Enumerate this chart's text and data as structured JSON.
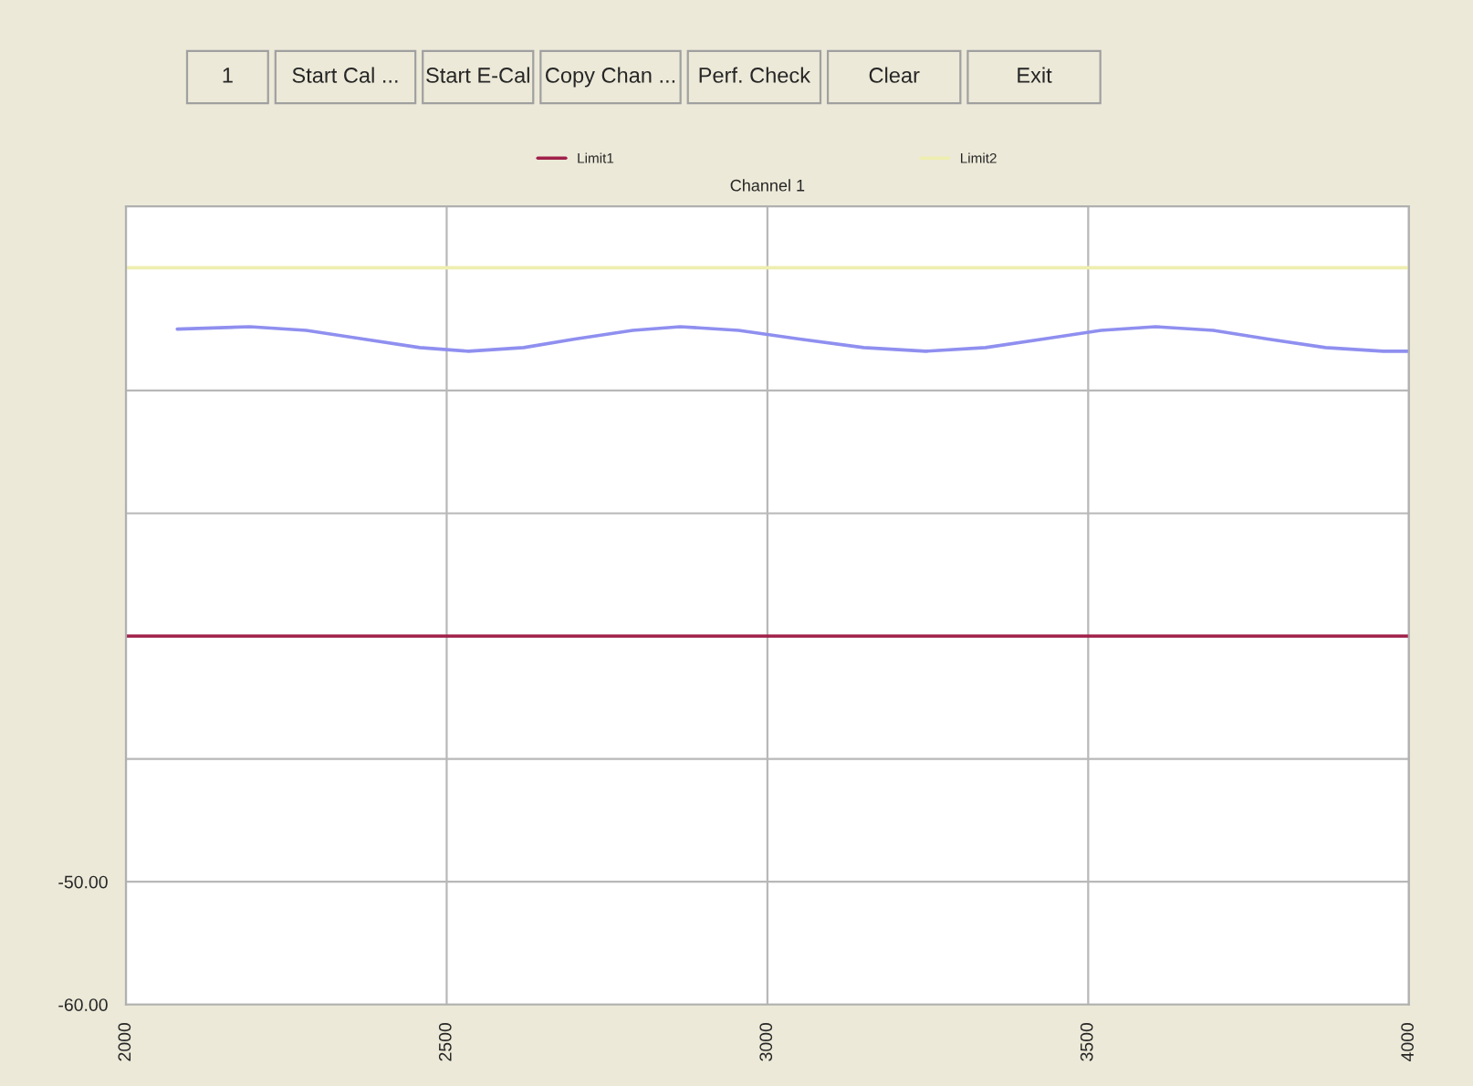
{
  "chart_data": {
    "type": "line",
    "title": "Channel 1",
    "annotations": [
      "1",
      "Start Cal ...",
      "Start E-Cal",
      "Copy Chan ...",
      "Perf. Check",
      "Clear",
      "Exit"
    ],
    "series": [
      {
        "name": "Limit1",
        "color": "#a0204a",
        "x": [
          2000,
          4000
        ],
        "values": [
          -30,
          -30
        ]
      },
      {
        "name": "Limit2",
        "color": "#eeeeb0",
        "x": [
          2000,
          4000
        ],
        "values": [
          0,
          0
        ]
      },
      {
        "color": "#8f8ff0",
        "x": [
          2080,
          2193,
          2281,
          2370,
          2458,
          2534,
          2620,
          2700,
          2790,
          2864,
          2955,
          3050,
          3150,
          3247,
          3340,
          3430,
          3520,
          3605,
          3695,
          3780,
          3870,
          3960,
          4000
        ],
        "values": [
          -5.0,
          -4.8,
          -5.1,
          -5.8,
          -6.5,
          -6.8,
          -6.5,
          -5.8,
          -5.1,
          -4.8,
          -5.1,
          -5.8,
          -6.5,
          -6.8,
          -6.5,
          -5.8,
          -5.1,
          -4.8,
          -5.1,
          -5.8,
          -6.5,
          -6.8,
          -6.8
        ]
      }
    ],
    "xlim": [
      2000,
      4000
    ],
    "xticks": [
      2000,
      2500,
      3000,
      3500,
      4000
    ],
    "ylim": [
      -60,
      5
    ],
    "yticks": [
      {
        "value": -60,
        "label": "-60.00"
      },
      {
        "value": -50,
        "label": "-50.00"
      },
      {
        "value": -40,
        "label": null
      },
      {
        "value": -30,
        "label": null
      },
      {
        "value": -20,
        "label": null
      },
      {
        "value": -10,
        "label": null
      },
      {
        "value": 0,
        "label": null
      }
    ],
    "grid": true,
    "legend": "top",
    "marker": "none",
    "line_style": "solid"
  }
}
